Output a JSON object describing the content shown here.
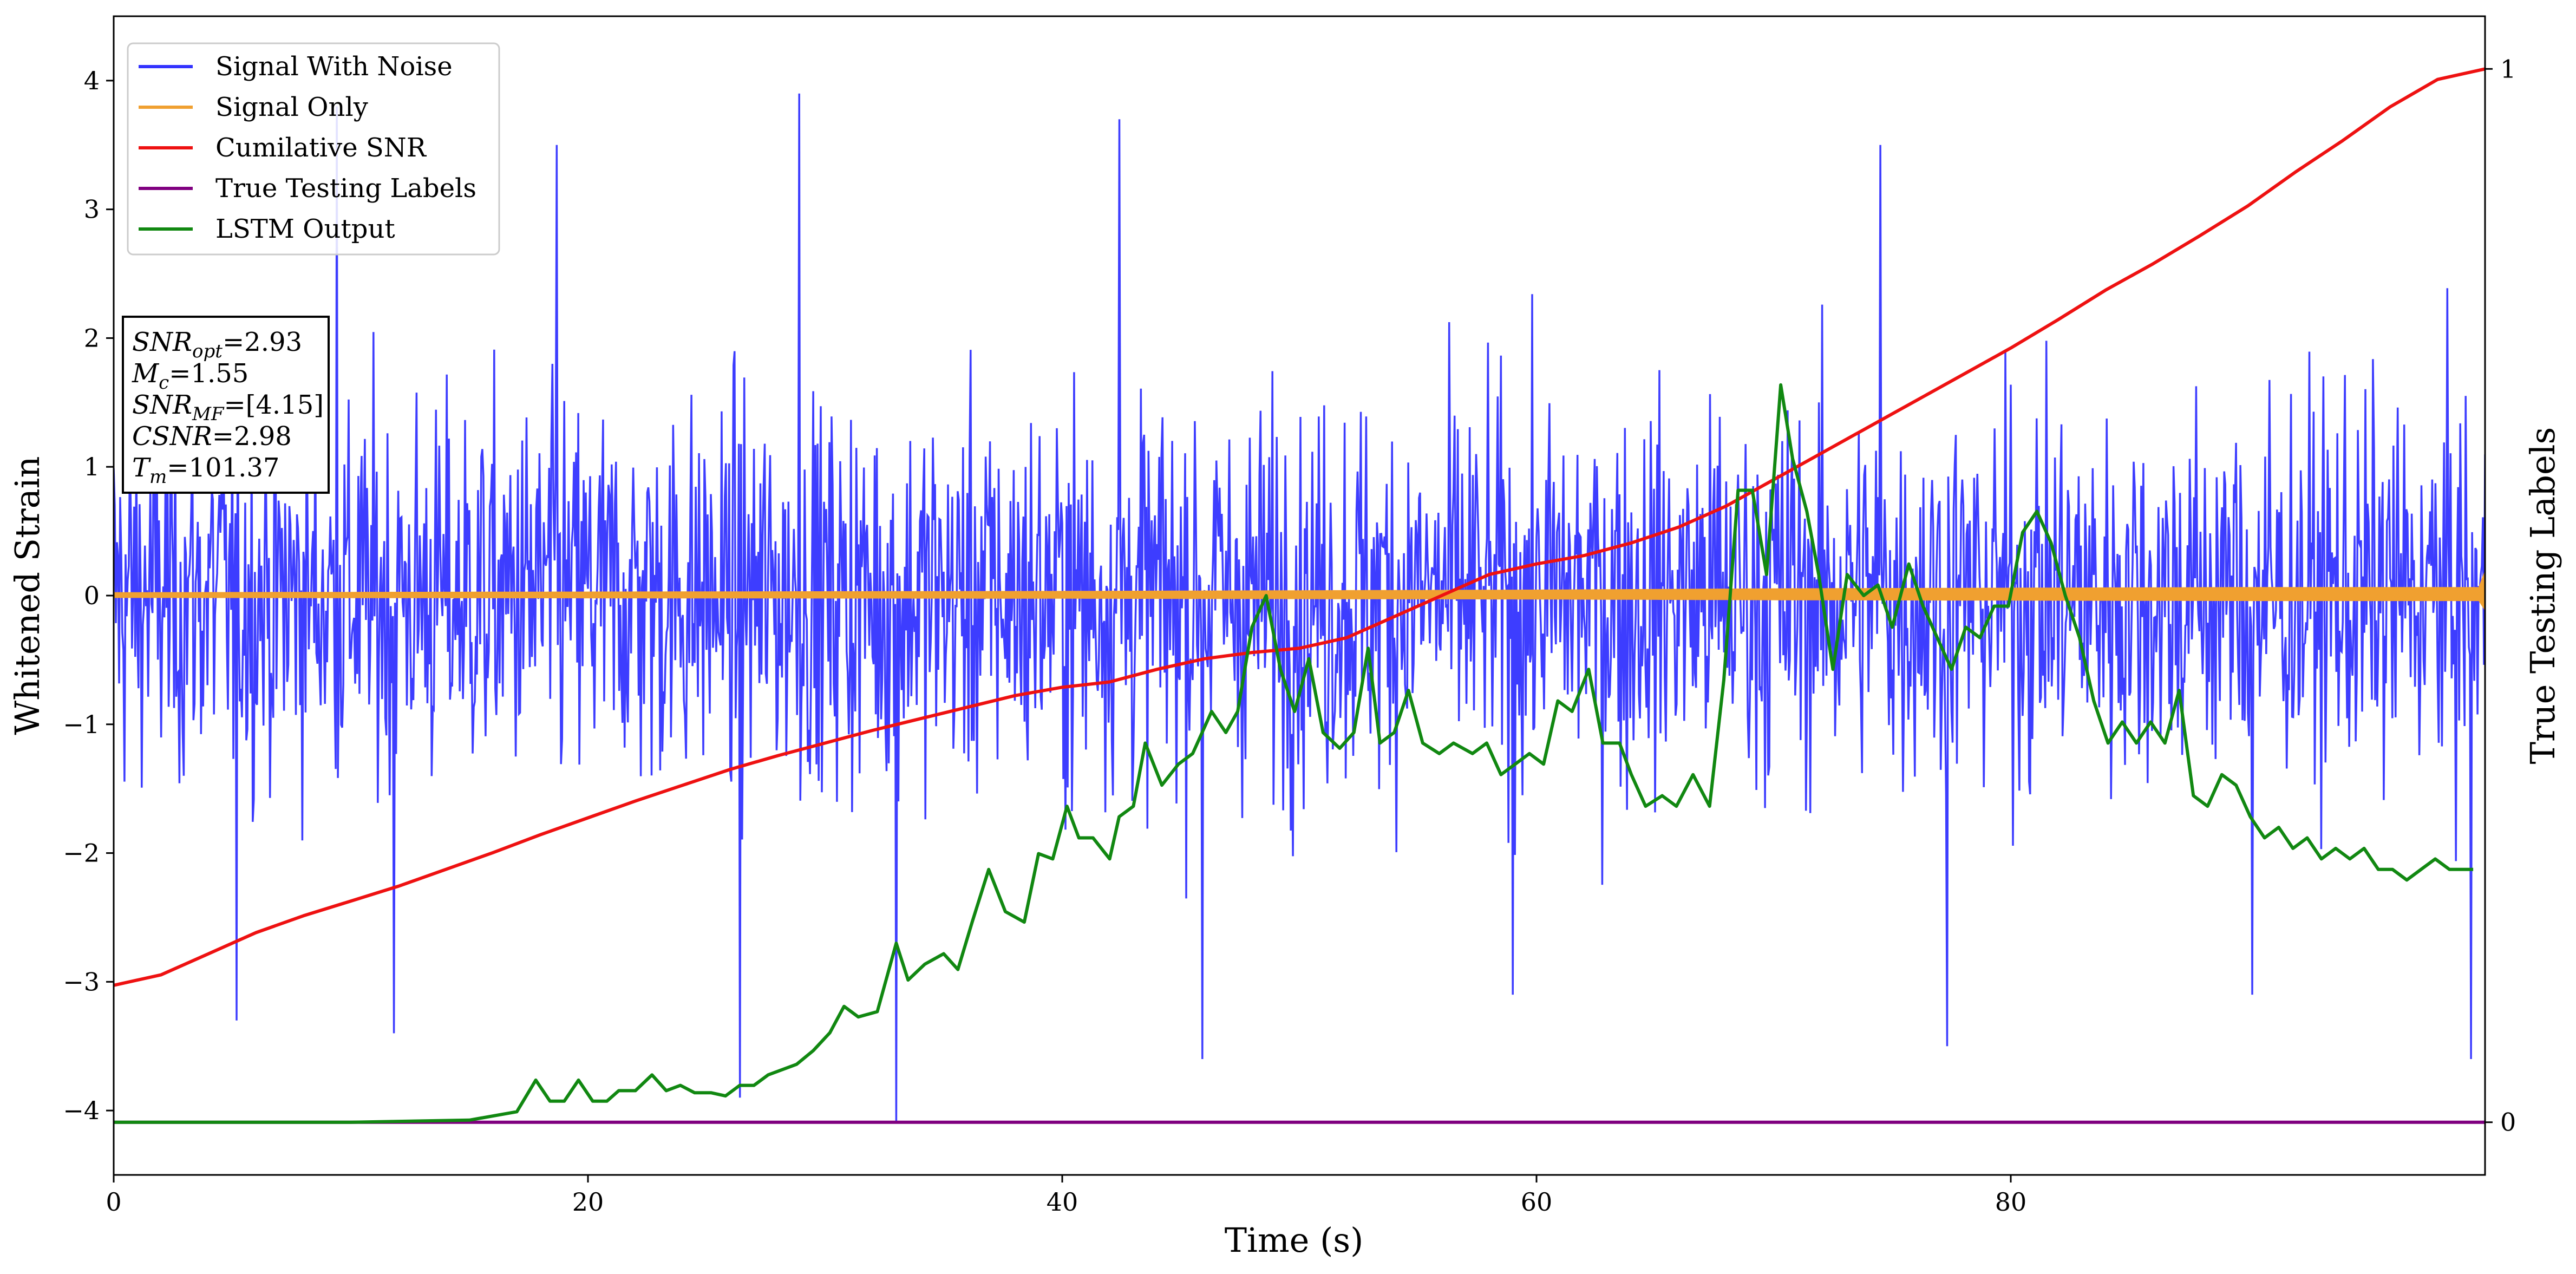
{
  "chart_data": {
    "type": "line",
    "xlabel": "Time (s)",
    "ylabel": "Whitened Strain",
    "ylabel_right": "True Testing Labels",
    "xlim": [
      0,
      100
    ],
    "ylim": [
      -4.5,
      4.5
    ],
    "ylim_right": [
      -0.05,
      1.05
    ],
    "x_ticks": [
      {
        "value": 0,
        "label": "0"
      },
      {
        "value": 20,
        "label": "20"
      },
      {
        "value": 40,
        "label": "40"
      },
      {
        "value": 60,
        "label": "60"
      },
      {
        "value": 80,
        "label": "80"
      }
    ],
    "y_ticks": [
      {
        "value": -4,
        "label": "−4"
      },
      {
        "value": -3,
        "label": "−3"
      },
      {
        "value": -2,
        "label": "−2"
      },
      {
        "value": -1,
        "label": "−1"
      },
      {
        "value": 0,
        "label": "0"
      },
      {
        "value": 1,
        "label": "1"
      },
      {
        "value": 2,
        "label": "2"
      },
      {
        "value": 3,
        "label": "3"
      },
      {
        "value": 4,
        "label": "4"
      }
    ],
    "y_ticks_right": [
      {
        "value": 0,
        "label": "0"
      },
      {
        "value": 1,
        "label": "1"
      }
    ],
    "grid": false,
    "legend_position": "top-left",
    "series": [
      {
        "name": "Signal With Noise",
        "color": "#3333ff",
        "axis": "left",
        "kind": "noise",
        "approx_range": [
          -4.1,
          3.9
        ],
        "spikes": [
          [
            5.2,
            -3.3
          ],
          [
            9.4,
            3.8
          ],
          [
            11.8,
            -3.4
          ],
          [
            18.7,
            3.5
          ],
          [
            26.4,
            -3.9
          ],
          [
            28.9,
            3.9
          ],
          [
            33.0,
            -4.1
          ],
          [
            42.4,
            3.7
          ],
          [
            45.9,
            -3.6
          ],
          [
            59.0,
            -3.1
          ],
          [
            74.5,
            3.5
          ],
          [
            77.3,
            -3.5
          ],
          [
            90.2,
            -3.1
          ],
          [
            99.4,
            -3.6
          ]
        ]
      },
      {
        "name": "Signal Only",
        "color": "#f0a030",
        "axis": "left",
        "kind": "band",
        "envelope": [
          [
            0,
            0.02
          ],
          [
            40,
            0.03
          ],
          [
            60,
            0.04
          ],
          [
            70,
            0.05
          ],
          [
            80,
            0.055
          ],
          [
            90,
            0.06
          ],
          [
            99.5,
            0.06
          ],
          [
            100,
            -0.18
          ]
        ]
      },
      {
        "name": "Cumilative SNR",
        "color": "#ee1111",
        "axis": "right",
        "points": [
          [
            0,
            0.13
          ],
          [
            2,
            0.14
          ],
          [
            4,
            0.16
          ],
          [
            6,
            0.18
          ],
          [
            8,
            0.196
          ],
          [
            10,
            0.21
          ],
          [
            12,
            0.224
          ],
          [
            14,
            0.24
          ],
          [
            16,
            0.256
          ],
          [
            18,
            0.273
          ],
          [
            20,
            0.289
          ],
          [
            22,
            0.305
          ],
          [
            24,
            0.32
          ],
          [
            26,
            0.335
          ],
          [
            28,
            0.348
          ],
          [
            30,
            0.36
          ],
          [
            32,
            0.372
          ],
          [
            34,
            0.383
          ],
          [
            36,
            0.394
          ],
          [
            38,
            0.405
          ],
          [
            40,
            0.413
          ],
          [
            42,
            0.418
          ],
          [
            44,
            0.43
          ],
          [
            46,
            0.44
          ],
          [
            48,
            0.446
          ],
          [
            50,
            0.45
          ],
          [
            52,
            0.46
          ],
          [
            54,
            0.48
          ],
          [
            56,
            0.5
          ],
          [
            58,
            0.52
          ],
          [
            60,
            0.53
          ],
          [
            62,
            0.538
          ],
          [
            64,
            0.55
          ],
          [
            66,
            0.565
          ],
          [
            68,
            0.585
          ],
          [
            70,
            0.61
          ],
          [
            72,
            0.635
          ],
          [
            74,
            0.66
          ],
          [
            76,
            0.685
          ],
          [
            78,
            0.71
          ],
          [
            80,
            0.735
          ],
          [
            82,
            0.762
          ],
          [
            84,
            0.79
          ],
          [
            86,
            0.815
          ],
          [
            88,
            0.842
          ],
          [
            90,
            0.87
          ],
          [
            92,
            0.902
          ],
          [
            94,
            0.932
          ],
          [
            96,
            0.964
          ],
          [
            98,
            0.99
          ],
          [
            100,
            1.0
          ]
        ]
      },
      {
        "name": "True Testing Labels",
        "color": "#800080",
        "axis": "right",
        "points": [
          [
            0,
            0.0
          ],
          [
            100,
            0.0
          ]
        ]
      },
      {
        "name": "LSTM Output",
        "color": "#118811",
        "axis": "right",
        "points": [
          [
            0,
            0.0
          ],
          [
            10,
            0.0
          ],
          [
            15,
            0.002
          ],
          [
            17,
            0.01
          ],
          [
            17.8,
            0.04
          ],
          [
            18.4,
            0.02
          ],
          [
            19,
            0.02
          ],
          [
            19.6,
            0.04
          ],
          [
            20.2,
            0.02
          ],
          [
            20.8,
            0.02
          ],
          [
            21.3,
            0.03
          ],
          [
            22,
            0.03
          ],
          [
            22.7,
            0.045
          ],
          [
            23.3,
            0.03
          ],
          [
            23.9,
            0.035
          ],
          [
            24.5,
            0.028
          ],
          [
            25.2,
            0.028
          ],
          [
            25.8,
            0.025
          ],
          [
            26.4,
            0.035
          ],
          [
            27.0,
            0.035
          ],
          [
            27.6,
            0.045
          ],
          [
            28.8,
            0.055
          ],
          [
            29.5,
            0.068
          ],
          [
            30.2,
            0.085
          ],
          [
            30.8,
            0.11
          ],
          [
            31.4,
            0.1
          ],
          [
            32.2,
            0.105
          ],
          [
            33.0,
            0.17
          ],
          [
            33.5,
            0.135
          ],
          [
            34.2,
            0.15
          ],
          [
            35.0,
            0.16
          ],
          [
            35.6,
            0.145
          ],
          [
            36.2,
            0.19
          ],
          [
            36.9,
            0.24
          ],
          [
            37.6,
            0.2
          ],
          [
            38.4,
            0.19
          ],
          [
            39.0,
            0.255
          ],
          [
            39.6,
            0.25
          ],
          [
            40.2,
            0.3
          ],
          [
            40.7,
            0.27
          ],
          [
            41.3,
            0.27
          ],
          [
            42.0,
            0.25
          ],
          [
            42.4,
            0.29
          ],
          [
            43.0,
            0.3
          ],
          [
            43.5,
            0.36
          ],
          [
            44.2,
            0.32
          ],
          [
            44.9,
            0.34
          ],
          [
            45.5,
            0.35
          ],
          [
            46.3,
            0.39
          ],
          [
            46.9,
            0.37
          ],
          [
            47.4,
            0.39
          ],
          [
            48.0,
            0.47
          ],
          [
            48.6,
            0.5
          ],
          [
            49.2,
            0.43
          ],
          [
            49.8,
            0.39
          ],
          [
            50.4,
            0.44
          ],
          [
            51.0,
            0.37
          ],
          [
            51.7,
            0.355
          ],
          [
            52.3,
            0.37
          ],
          [
            52.9,
            0.45
          ],
          [
            53.4,
            0.36
          ],
          [
            54.0,
            0.37
          ],
          [
            54.6,
            0.41
          ],
          [
            55.2,
            0.36
          ],
          [
            55.9,
            0.35
          ],
          [
            56.5,
            0.36
          ],
          [
            57.3,
            0.35
          ],
          [
            57.9,
            0.36
          ],
          [
            58.5,
            0.33
          ],
          [
            59.1,
            0.34
          ],
          [
            59.7,
            0.35
          ],
          [
            60.3,
            0.34
          ],
          [
            60.9,
            0.4
          ],
          [
            61.5,
            0.39
          ],
          [
            62.2,
            0.43
          ],
          [
            62.8,
            0.36
          ],
          [
            63.5,
            0.36
          ],
          [
            64.0,
            0.33
          ],
          [
            64.6,
            0.3
          ],
          [
            65.3,
            0.31
          ],
          [
            65.9,
            0.3
          ],
          [
            66.6,
            0.33
          ],
          [
            67.3,
            0.3
          ],
          [
            67.9,
            0.42
          ],
          [
            68.5,
            0.6
          ],
          [
            69.1,
            0.6
          ],
          [
            69.7,
            0.52
          ],
          [
            70.3,
            0.7
          ],
          [
            70.8,
            0.63
          ],
          [
            71.4,
            0.58
          ],
          [
            71.9,
            0.52
          ],
          [
            72.5,
            0.43
          ],
          [
            73.1,
            0.52
          ],
          [
            73.8,
            0.5
          ],
          [
            74.4,
            0.51
          ],
          [
            75.0,
            0.47
          ],
          [
            75.7,
            0.53
          ],
          [
            76.3,
            0.49
          ],
          [
            76.9,
            0.46
          ],
          [
            77.5,
            0.43
          ],
          [
            78.1,
            0.47
          ],
          [
            78.7,
            0.46
          ],
          [
            79.3,
            0.49
          ],
          [
            79.9,
            0.49
          ],
          [
            80.5,
            0.56
          ],
          [
            81.1,
            0.58
          ],
          [
            81.7,
            0.55
          ],
          [
            82.3,
            0.5
          ],
          [
            82.9,
            0.46
          ],
          [
            83.5,
            0.4
          ],
          [
            84.1,
            0.36
          ],
          [
            84.7,
            0.38
          ],
          [
            85.3,
            0.36
          ],
          [
            85.9,
            0.38
          ],
          [
            86.5,
            0.36
          ],
          [
            87.1,
            0.41
          ],
          [
            87.7,
            0.31
          ],
          [
            88.3,
            0.3
          ],
          [
            88.9,
            0.33
          ],
          [
            89.5,
            0.32
          ],
          [
            90.1,
            0.29
          ],
          [
            90.7,
            0.27
          ],
          [
            91.3,
            0.28
          ],
          [
            91.9,
            0.26
          ],
          [
            92.5,
            0.27
          ],
          [
            93.1,
            0.25
          ],
          [
            93.7,
            0.26
          ],
          [
            94.3,
            0.25
          ],
          [
            94.9,
            0.26
          ],
          [
            95.5,
            0.24
          ],
          [
            96.1,
            0.24
          ],
          [
            96.7,
            0.23
          ],
          [
            97.3,
            0.24
          ],
          [
            97.9,
            0.25
          ],
          [
            98.5,
            0.24
          ],
          [
            99.5,
            0.24
          ]
        ]
      }
    ]
  },
  "info_box": {
    "lines": [
      {
        "sym": "SNR",
        "sub": "opt",
        "value": "=2.93"
      },
      {
        "sym": "M",
        "sub": "c",
        "value": "=1.55"
      },
      {
        "sym": "SNR",
        "sub": "MF",
        "value": "=[4.15]"
      },
      {
        "sym": "CSNR",
        "sub": "",
        "value": "=2.98"
      },
      {
        "sym": "T",
        "sub": "m",
        "value": "=101.37"
      }
    ]
  }
}
